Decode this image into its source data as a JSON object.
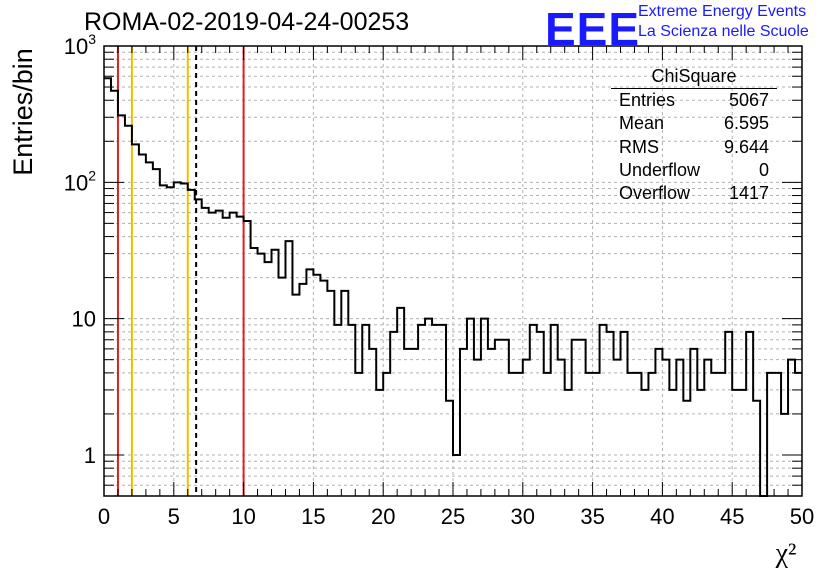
{
  "title": "ROMA-02-2019-04-24-00253",
  "logo": {
    "mark": "EEE",
    "line1": "Extreme Energy Events",
    "line2": "La Scienza nelle Scuole",
    "color": "#1a1aff"
  },
  "stats": {
    "title": "ChiSquare",
    "rows": [
      {
        "label": "Entries",
        "value": "5067"
      },
      {
        "label": "Mean",
        "value": "6.595"
      },
      {
        "label": "RMS",
        "value": "9.644"
      },
      {
        "label": "Underflow",
        "value": "0"
      },
      {
        "label": "Overflow",
        "value": "1417"
      }
    ]
  },
  "chart_data": {
    "type": "histogram",
    "ylabel": "Entries/bin",
    "xlabel": "χ²",
    "xlim": [
      0,
      50
    ],
    "ylim": [
      0.5,
      1000
    ],
    "yscale": "log",
    "grid": true,
    "bin_width": 0.5,
    "x_ticks": [
      "0",
      "5",
      "10",
      "15",
      "20",
      "25",
      "30",
      "35",
      "40",
      "45",
      "50"
    ],
    "y_ticks": [
      {
        "value": 1,
        "label": "1"
      },
      {
        "value": 10,
        "label": "10"
      },
      {
        "value": 100,
        "label": "10²"
      },
      {
        "value": 1000,
        "label": "10³"
      }
    ],
    "values": [
      580,
      470,
      310,
      260,
      190,
      160,
      140,
      125,
      95,
      92,
      100,
      98,
      88,
      75,
      65,
      60,
      62,
      55,
      60,
      56,
      52,
      33,
      30,
      26,
      32,
      20,
      37,
      15,
      18,
      23,
      21,
      19,
      16,
      9,
      16,
      9,
      4,
      9,
      6,
      3,
      4,
      8,
      12,
      6,
      6,
      9,
      10,
      9,
      9,
      2.5,
      1,
      6,
      10,
      5,
      10,
      6,
      7,
      7,
      4,
      4,
      5,
      9,
      8,
      4,
      9,
      5,
      3,
      7,
      7,
      4,
      4,
      9,
      8,
      5,
      8,
      4,
      4,
      3,
      4,
      6,
      5,
      3,
      5,
      2.5,
      6,
      3,
      5,
      4,
      4,
      8,
      3,
      3,
      8,
      2.5,
      0.5,
      4,
      4,
      2,
      5,
      4
    ],
    "vertical_lines": [
      {
        "x": 1.0,
        "color": "#e02020",
        "style": "solid"
      },
      {
        "x": 2.0,
        "color": "#f0c000",
        "style": "solid"
      },
      {
        "x": 6.0,
        "color": "#f0c000",
        "style": "solid"
      },
      {
        "x": 6.6,
        "color": "#000000",
        "style": "dashed"
      },
      {
        "x": 10.0,
        "color": "#e02020",
        "style": "solid"
      }
    ]
  }
}
